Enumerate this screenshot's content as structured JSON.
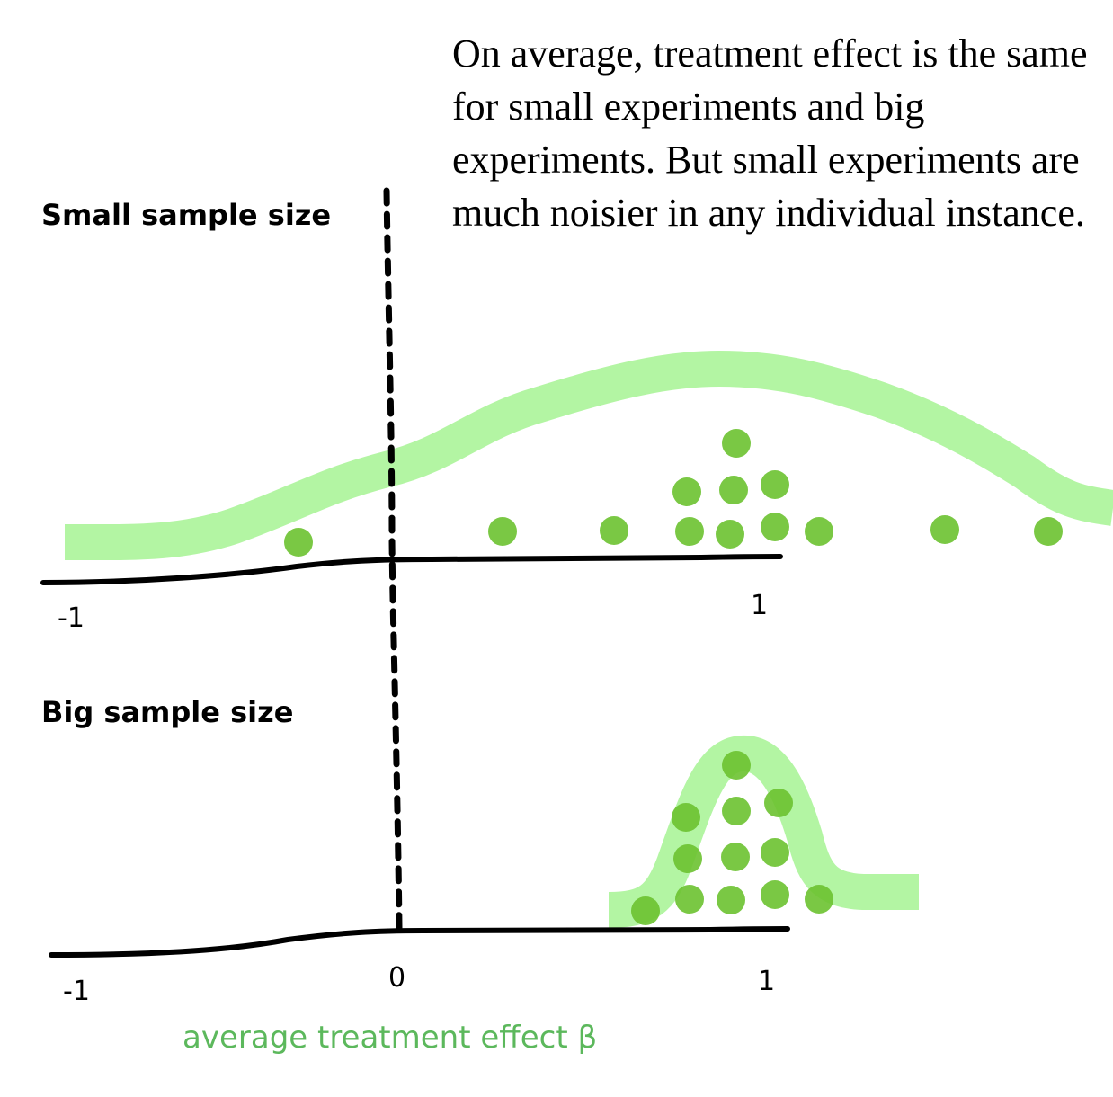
{
  "annotation": "On average, treatment effect is the same for small experiments and big experiments. But small experiments are much noisier in any individual instance.",
  "panels": {
    "small": {
      "title": "Small sample size",
      "ticks": [
        "-1",
        "1"
      ]
    },
    "big": {
      "title": "Big sample size",
      "ticks": [
        "-1",
        "0",
        "1"
      ]
    }
  },
  "axis_caption": "average treatment effect β",
  "colors": {
    "curve": "#b3f5a3",
    "dot": "#6cc230",
    "axis": "#000000",
    "caption": "#5cb85c"
  }
}
